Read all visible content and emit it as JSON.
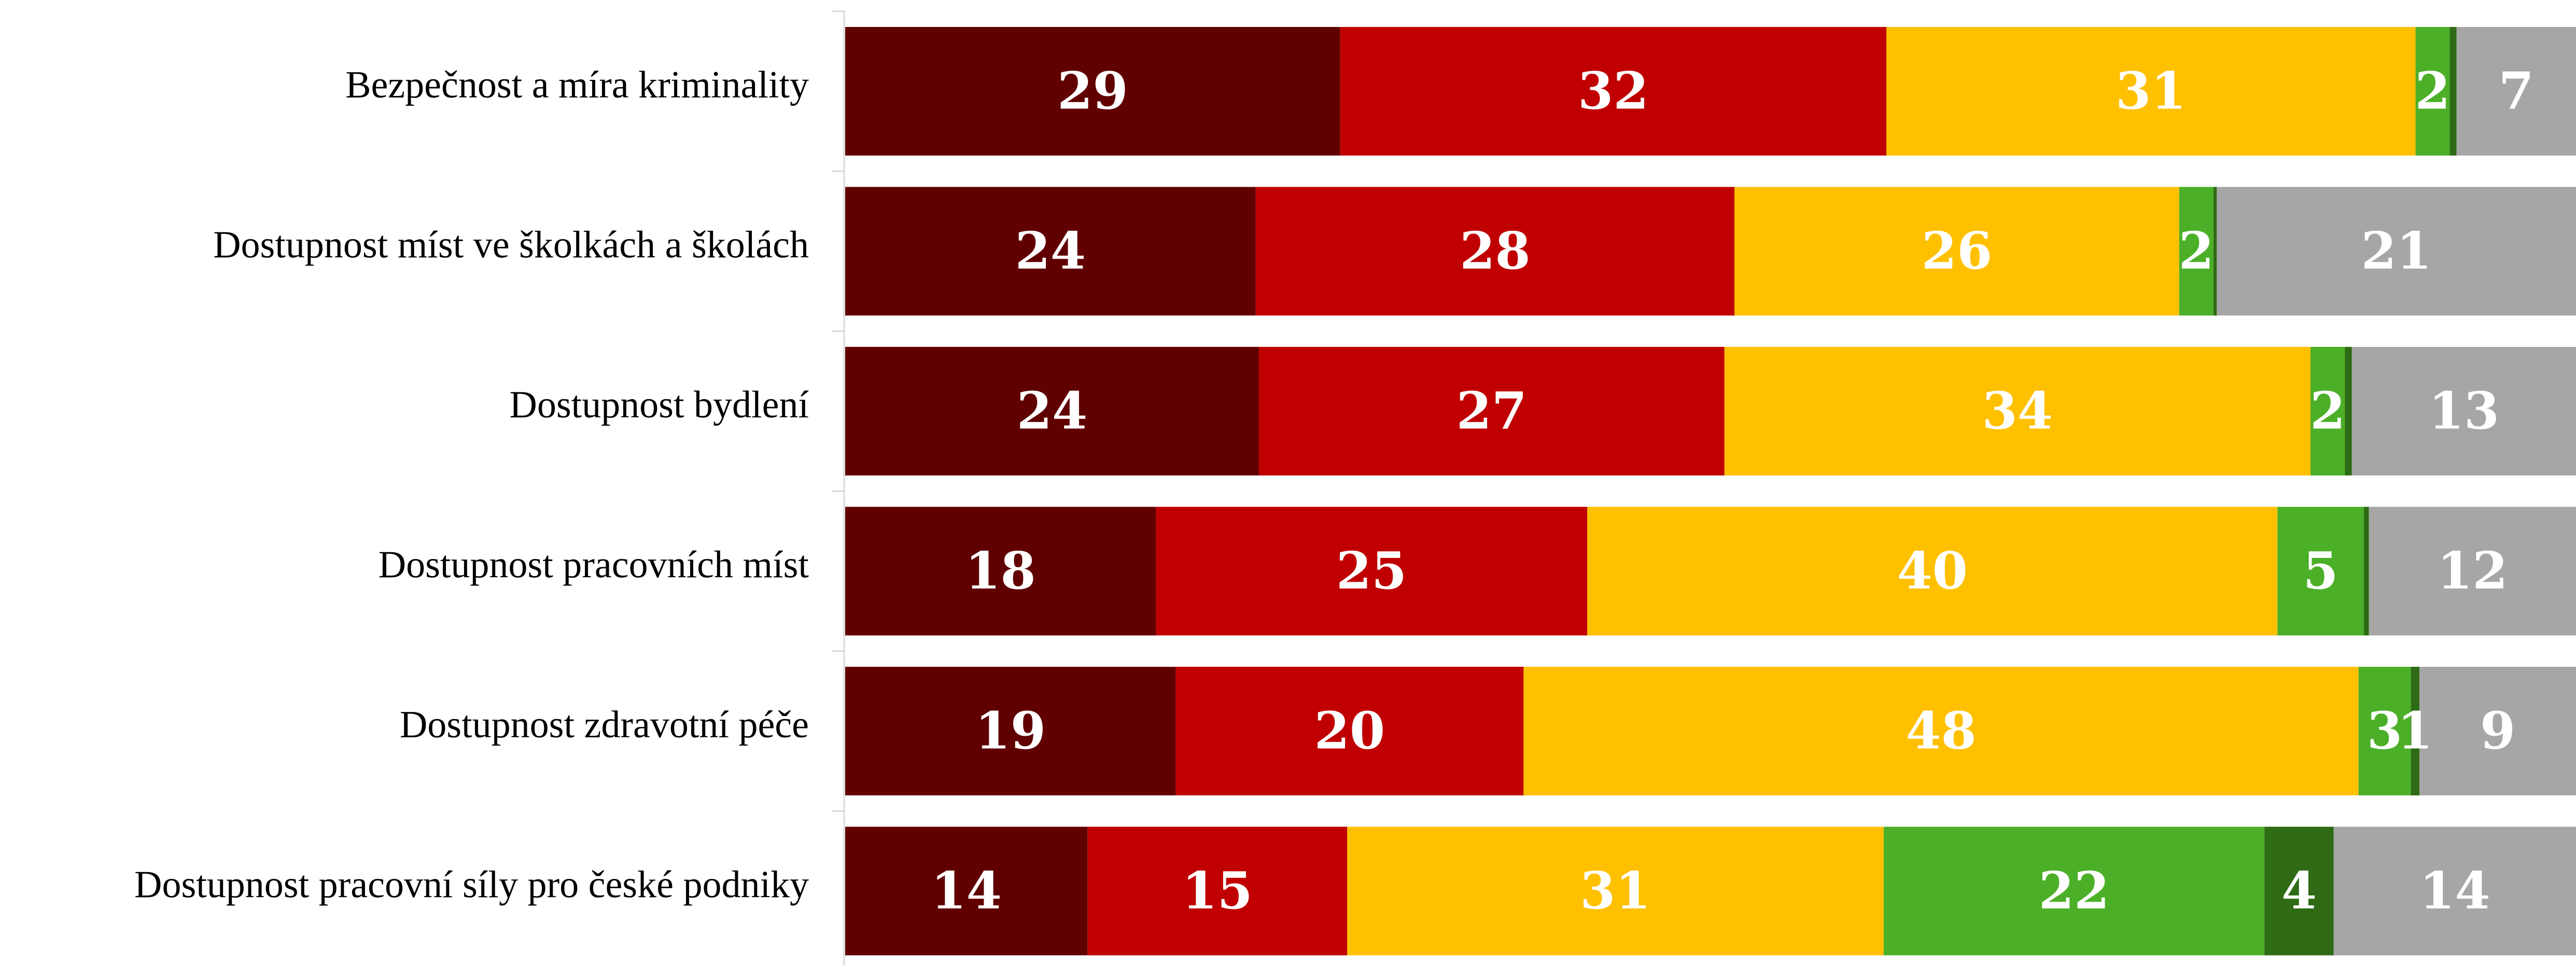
{
  "chart_data": {
    "type": "bar",
    "orientation": "horizontal",
    "stacked": true,
    "normalized": true,
    "title": "",
    "xlabel": "",
    "ylabel": "",
    "grid": false,
    "legend": "none",
    "categories": [
      "Bezpečnost a míra kriminality",
      "Dostupnost míst ve školkách a školách",
      "Dostupnost bydlení",
      "Dostupnost pracovních míst",
      "Dostupnost zdravotní péče",
      "Dostupnost pracovní síly pro české podniky"
    ],
    "series": [
      {
        "color": "#600000",
        "values": [
          29,
          24,
          24,
          18,
          19,
          14
        ]
      },
      {
        "color": "#C00000",
        "values": [
          32,
          28,
          27,
          25,
          20,
          15
        ]
      },
      {
        "color": "#FFC000",
        "values": [
          31,
          26,
          34,
          40,
          48,
          31
        ]
      },
      {
        "color": "#4CAF28",
        "values": [
          2,
          2,
          2,
          5,
          3,
          22
        ]
      },
      {
        "color": "#2E6B14",
        "values": [
          0.4,
          0.2,
          0.4,
          0.3,
          0.5,
          4
        ]
      },
      {
        "color": "#A6A6A6",
        "values": [
          7,
          21,
          13,
          12,
          9,
          14
        ]
      }
    ],
    "data_labels": [
      [
        "29",
        "32",
        "31",
        "2",
        "",
        "7"
      ],
      [
        "24",
        "28",
        "26",
        "2",
        "",
        "21"
      ],
      [
        "24",
        "27",
        "34",
        "2",
        "",
        "13"
      ],
      [
        "18",
        "25",
        "40",
        "5",
        "",
        "12"
      ],
      [
        "19",
        "20",
        "48",
        "3",
        "1",
        "9"
      ],
      [
        "14",
        "15",
        "31",
        "22",
        "4",
        "14"
      ]
    ]
  }
}
